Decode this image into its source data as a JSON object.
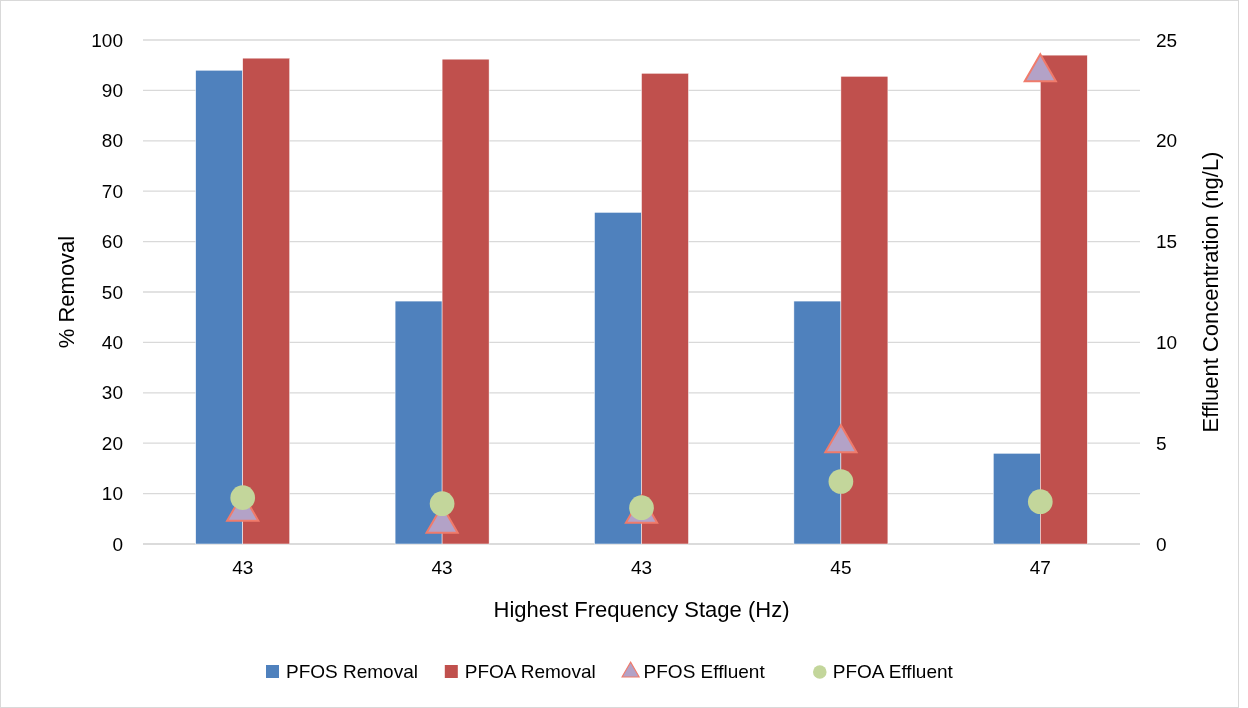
{
  "chart_data": {
    "type": "bar",
    "xlabel": "Highest Frequency Stage (Hz)",
    "ylabel": "% Removal",
    "y2label": "Effluent Concentration (ng/L)",
    "categories": [
      "43",
      "43",
      "43",
      "45",
      "47"
    ],
    "series": [
      {
        "name": "PFOS Removal",
        "color": "#4f81bd",
        "values": [
          94,
          48.2,
          65.8,
          48.2,
          18
        ]
      },
      {
        "name": "PFOA Removal",
        "color": "#c0504d",
        "values": [
          96.4,
          96.2,
          93.4,
          92.8,
          97
        ]
      },
      {
        "name": "PFOS Effluent",
        "type": "scatter",
        "axis": "y2",
        "marker": "triangle",
        "color": "#b3a2c7",
        "values": [
          1.6,
          1.0,
          1.5,
          5.0,
          23.4
        ]
      },
      {
        "name": "PFOA Effluent",
        "type": "scatter",
        "axis": "y2",
        "marker": "circle",
        "color": "#c3d69b",
        "values": [
          2.3,
          2.0,
          1.8,
          3.1,
          2.1
        ]
      }
    ],
    "ylim": [
      0,
      100
    ],
    "yticks": [
      0,
      10,
      20,
      30,
      40,
      50,
      60,
      70,
      80,
      90,
      100
    ],
    "y2lim": [
      0,
      25
    ],
    "y2ticks": [
      0,
      5,
      10,
      15,
      20,
      25
    ],
    "grid": "y",
    "legend": "bottom"
  }
}
